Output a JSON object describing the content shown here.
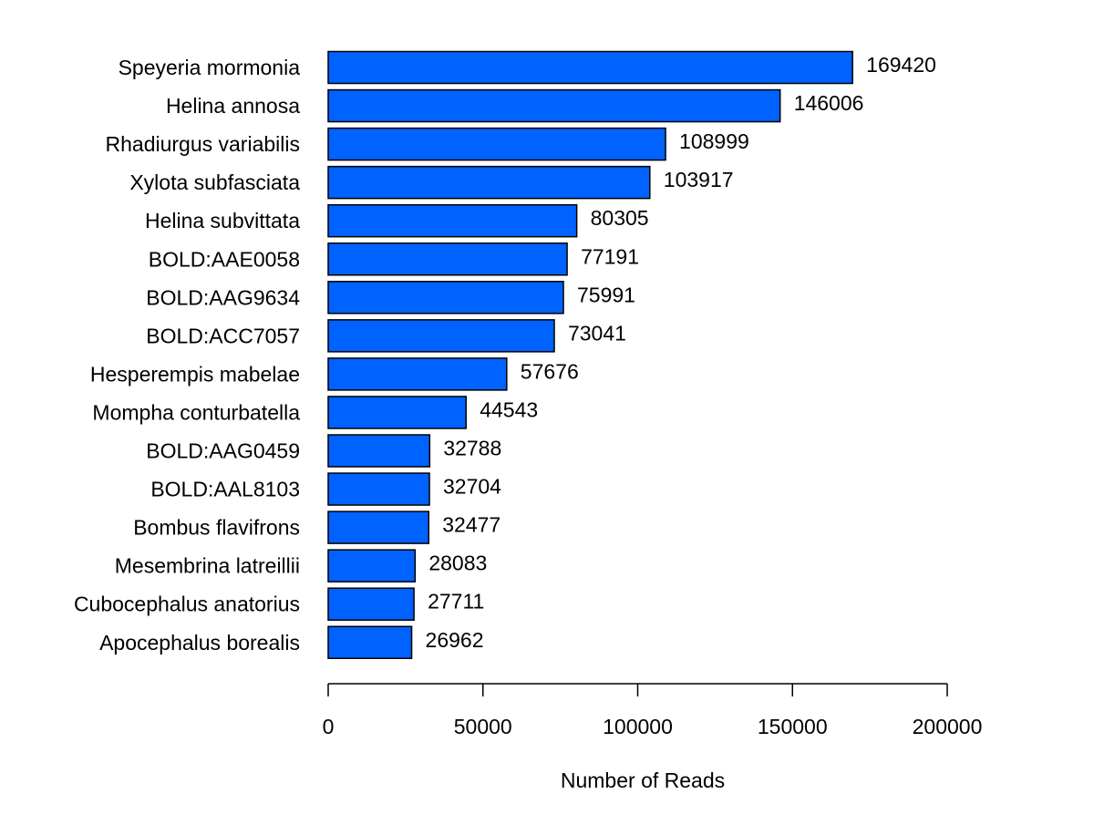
{
  "chart_data": {
    "type": "bar",
    "orientation": "horizontal",
    "categories": [
      "Speyeria mormonia",
      "Helina annosa",
      "Rhadiurgus variabilis",
      "Xylota subfasciata",
      "Helina subvittata",
      "BOLD:AAE0058",
      "BOLD:AAG9634",
      "BOLD:ACC7057",
      "Hesperempis mabelae",
      "Mompha conturbatella",
      "BOLD:AAG0459",
      "BOLD:AAL8103",
      "Bombus flavifrons",
      "Mesembrina latreillii",
      "Cubocephalus anatorius",
      "Apocephalus borealis"
    ],
    "values": [
      169420,
      146006,
      108999,
      103917,
      80305,
      77191,
      75991,
      73041,
      57676,
      44543,
      32788,
      32704,
      32477,
      28083,
      27711,
      26962
    ],
    "data_labels": [
      "169420",
      "146006",
      "108999",
      "103917",
      "80305",
      "77191",
      "75991",
      "73041",
      "57676",
      "44543",
      "32788",
      "32704",
      "32477",
      "28083",
      "27711",
      "26962"
    ],
    "title": "",
    "xlabel": "Number of Reads",
    "ylabel": "",
    "xlim": [
      0,
      200000
    ],
    "x_ticks": [
      0,
      50000,
      100000,
      150000,
      200000
    ],
    "x_tick_labels": [
      "0",
      "50000",
      "100000",
      "150000",
      "200000"
    ],
    "grid": false,
    "legend": "none",
    "bar_color": "#0062FF",
    "bar_edge_color": "#000000"
  }
}
